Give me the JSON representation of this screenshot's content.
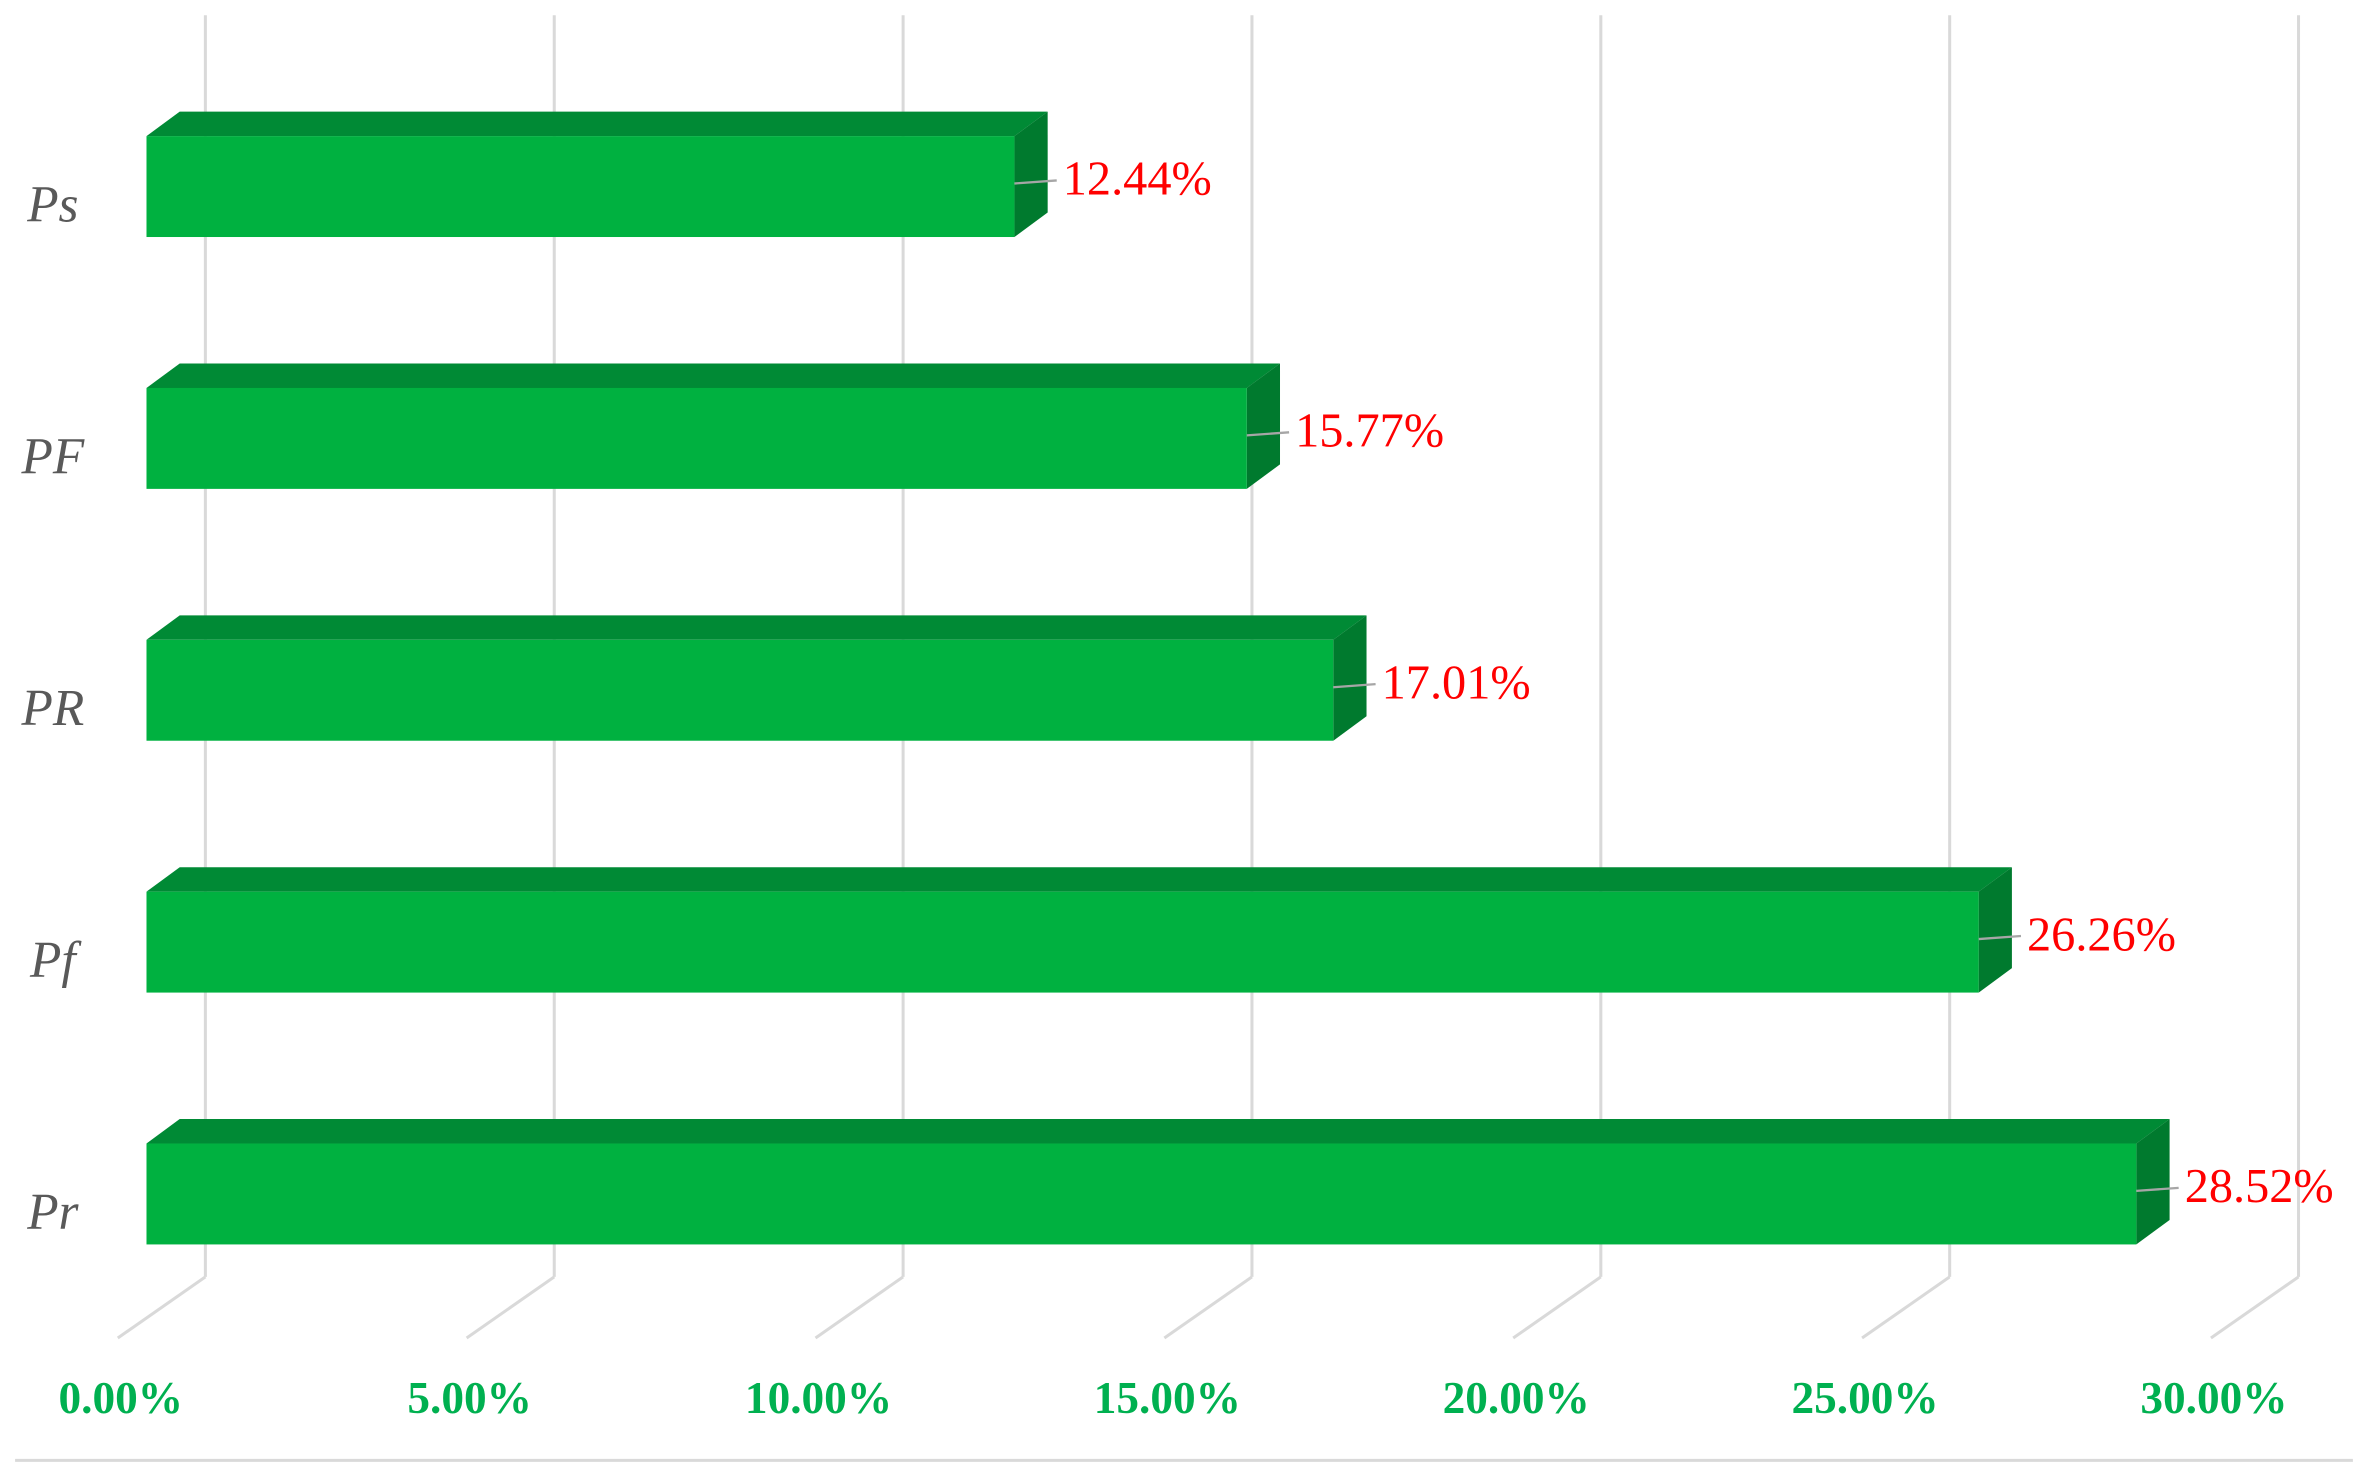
{
  "chart_data": {
    "type": "bar",
    "orientation": "horizontal",
    "categories": [
      "Ps",
      "PF",
      "PR",
      "Pf",
      "Pr"
    ],
    "values": [
      12.44,
      15.77,
      17.01,
      26.26,
      28.52
    ],
    "value_labels": [
      "12.44%",
      "15.77%",
      "17.01%",
      "26.26%",
      "28.52%"
    ],
    "color": "#00b140",
    "xlim": [
      0,
      30
    ],
    "xticks": [
      {
        "value": 0,
        "label": "0.00%"
      },
      {
        "value": 5,
        "label": "5.00%"
      },
      {
        "value": 10,
        "label": "10.00%"
      },
      {
        "value": 15,
        "label": "15.00%"
      },
      {
        "value": 20,
        "label": "20.00%"
      },
      {
        "value": 25,
        "label": "25.00%"
      },
      {
        "value": 30,
        "label": "30.00%"
      }
    ],
    "grid": true
  }
}
